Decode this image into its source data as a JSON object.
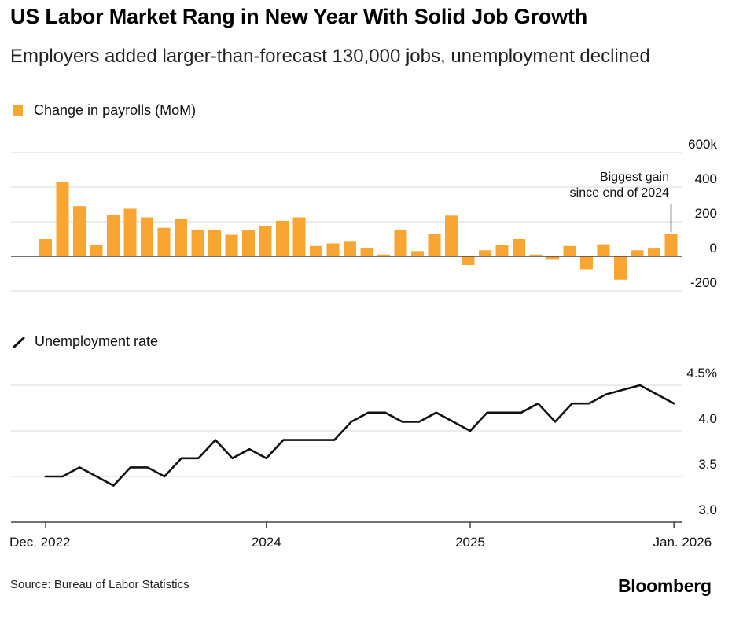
{
  "header": {
    "title": "US Labor Market Rang in New Year With Solid Job Growth",
    "subtitle": "Employers added larger-than-forecast 130,000 jobs, unemployment declined"
  },
  "colors": {
    "bar": "#f9a531",
    "line": "#111111",
    "grid": "#d9d9d9",
    "baseline": "#444444"
  },
  "chart_data": [
    {
      "type": "bar",
      "legend": "Change in payrolls (MoM)",
      "ylim": [
        -200,
        600
      ],
      "yticks": [
        -200,
        0,
        200,
        400,
        600
      ],
      "ytick_labels": [
        "-200",
        "0",
        "200",
        "400",
        "600k"
      ],
      "annotation": {
        "line1": "Biggest gain",
        "line2": "since end of 2024"
      },
      "values": [
        100,
        430,
        290,
        65,
        240,
        275,
        225,
        165,
        215,
        155,
        155,
        125,
        150,
        175,
        205,
        225,
        60,
        75,
        85,
        50,
        10,
        155,
        30,
        130,
        235,
        -50,
        35,
        65,
        100,
        10,
        -20,
        60,
        -75,
        70,
        -135,
        35,
        45,
        130
      ]
    },
    {
      "type": "line",
      "legend": "Unemployment rate",
      "ylim": [
        3.0,
        4.5
      ],
      "yticks": [
        3.0,
        3.5,
        4.0,
        4.5
      ],
      "ytick_labels": [
        "3.0",
        "3.5",
        "4.0",
        "4.5%"
      ],
      "values": [
        3.5,
        3.5,
        3.6,
        3.5,
        3.4,
        3.6,
        3.6,
        3.5,
        3.7,
        3.7,
        3.9,
        3.7,
        3.8,
        3.7,
        3.9,
        3.9,
        3.9,
        3.9,
        4.1,
        4.2,
        4.2,
        4.1,
        4.1,
        4.2,
        4.1,
        4.0,
        4.2,
        4.2,
        4.2,
        4.3,
        4.1,
        4.3,
        4.3,
        4.4,
        4.45,
        4.5,
        4.4,
        4.3
      ],
      "x_labels": [
        "Dec. 2022",
        "2024",
        "2025",
        "Jan. 2026"
      ]
    }
  ],
  "footer": {
    "source": "Source: Bureau of Labor Statistics",
    "brand": "Bloomberg"
  }
}
